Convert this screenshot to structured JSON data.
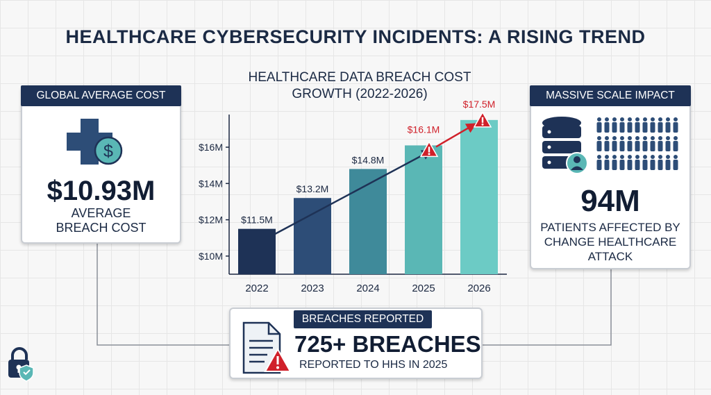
{
  "title": "HEALTHCARE CYBERSECURITY INCIDENTS: A RISING TREND",
  "chart_data": {
    "type": "bar",
    "title": "HEALTHCARE DATA BREACH COST GROWTH (2022-2026)",
    "categories": [
      "2022",
      "2023",
      "2024",
      "2025",
      "2026"
    ],
    "values": [
      11.5,
      13.2,
      14.8,
      16.1,
      17.5
    ],
    "value_labels": [
      "$11.5M",
      "$13.2M",
      "$14.8M",
      "$16.1M",
      "$17.5M"
    ],
    "y_ticks": [
      10,
      12,
      14,
      16
    ],
    "y_tick_labels": [
      "$10M",
      "$12M",
      "$14M",
      "$16M"
    ],
    "ylim": [
      9,
      17.8
    ],
    "bar_colors": [
      "#1e3256",
      "#2d4d77",
      "#3f8a9a",
      "#5ab7b5",
      "#6ccbc5"
    ],
    "highlight_color": "#d0202a",
    "trend_color": "#1e3256",
    "grid": false
  },
  "global_cost": {
    "header": "GLOBAL AVERAGE COST",
    "value": "$10.93M",
    "subtitle_line1": "AVERAGE",
    "subtitle_line2": "BREACH COST",
    "icon": "medical-cross-dollar-icon"
  },
  "scale_impact": {
    "header": "MASSIVE SCALE IMPACT",
    "value": "94M",
    "subtitle_line1": "PATIENTS AFFECTED BY",
    "subtitle_line2": "CHANGE HEALTHCARE",
    "subtitle_line3": "ATTACK",
    "icon": "database-people-icon"
  },
  "breaches": {
    "header": "BREACHES REPORTED",
    "value": "725+ BREACHES",
    "subtitle": "REPORTED TO HHS IN 2025",
    "icon": "document-warning-icon"
  },
  "corner_icon": "lock-shield-icon",
  "colors": {
    "navy": "#1e3256",
    "teal": "#5ab7b5",
    "alert_red": "#d0202a",
    "background": "#f7f7f7"
  }
}
